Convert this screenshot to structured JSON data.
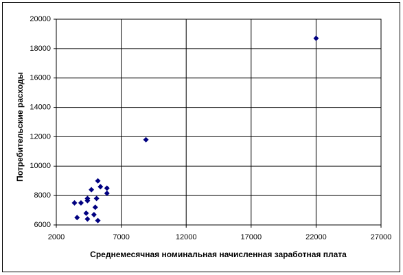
{
  "chart_data": {
    "type": "scatter",
    "x_label": "Среднемесячная номинальная начисленная заработная плата",
    "y_label": "Потребительские расходы",
    "x": [
      22000,
      8900,
      3400,
      3600,
      3900,
      4400,
      4400,
      4300,
      4400,
      4700,
      4900,
      5000,
      5100,
      5200,
      5200,
      5400,
      5900,
      5900
    ],
    "values": [
      18700,
      11800,
      7500,
      6500,
      7500,
      7800,
      7650,
      6800,
      6400,
      8400,
      6700,
      7200,
      7800,
      9000,
      6300,
      8600,
      8500,
      8150
    ],
    "color": "#000080",
    "xlim": [
      2000,
      27000
    ],
    "xticks": [
      2000,
      7000,
      12000,
      17000,
      22000,
      27000
    ],
    "ylim": [
      6000,
      20000
    ],
    "yticks": [
      6000,
      8000,
      10000,
      12000,
      14000,
      16000,
      18000,
      20000
    ],
    "grid": true
  }
}
